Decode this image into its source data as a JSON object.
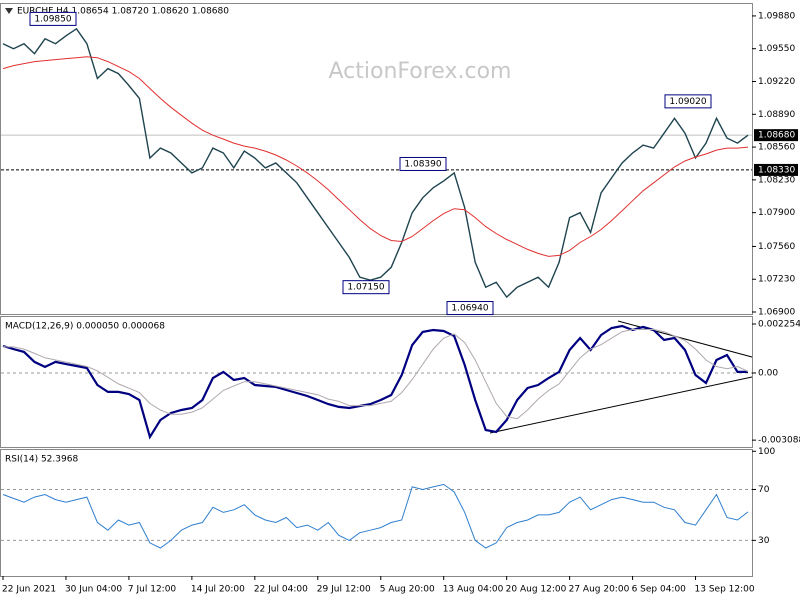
{
  "chart_data": [
    {
      "type": "line",
      "title": "EURCHF,H4  1.08654 1.08720 1.08620 1.08680",
      "watermark": "ActionForex.com",
      "categories": [
        "22 Jun 2021",
        null,
        null,
        null,
        null,
        null,
        "30 Jun 04:00",
        null,
        null,
        null,
        null,
        null,
        "7 Jul 12:00",
        null,
        null,
        null,
        null,
        null,
        "14 Jul 20:00",
        null,
        null,
        null,
        null,
        null,
        "22 Jul 04:00",
        null,
        null,
        null,
        null,
        null,
        "29 Jul 12:00",
        null,
        null,
        null,
        null,
        null,
        "5 Aug 20:00",
        null,
        null,
        null,
        null,
        null,
        "13 Aug 04:00",
        null,
        null,
        null,
        null,
        null,
        "20 Aug 12:00",
        null,
        null,
        null,
        null,
        null,
        "27 Aug 20:00",
        null,
        null,
        null,
        null,
        null,
        "6 Sep 04:00",
        null,
        null,
        null,
        null,
        null,
        "13 Sep 12:00",
        null,
        null,
        null,
        null,
        null
      ],
      "series": [
        {
          "color": "#1f4450",
          "values": [
            1.096,
            1.0955,
            1.096,
            1.095,
            1.0965,
            1.096,
            1.0968,
            1.0975,
            1.096,
            1.0925,
            1.0935,
            1.093,
            1.0918,
            1.0905,
            1.0845,
            1.0855,
            1.085,
            1.084,
            1.083,
            1.0835,
            1.0855,
            1.085,
            1.0835,
            1.0852,
            1.0845,
            1.0835,
            1.084,
            1.083,
            1.082,
            1.0805,
            1.079,
            1.0775,
            1.076,
            1.0745,
            1.0725,
            1.0722,
            1.0725,
            1.0735,
            1.076,
            1.079,
            1.0805,
            1.0815,
            1.0822,
            1.083,
            1.0795,
            1.074,
            1.0715,
            1.072,
            1.0705,
            1.0715,
            1.072,
            1.0725,
            1.0715,
            1.074,
            1.0785,
            1.079,
            1.077,
            1.081,
            1.0825,
            1.084,
            1.085,
            1.0858,
            1.0855,
            1.087,
            1.0885,
            1.087,
            1.0845,
            1.086,
            1.0885,
            1.0865,
            1.086,
            1.0868
          ]
        },
        {
          "color": "#e03030",
          "values": [
            1.0935,
            1.0938,
            1.094,
            1.0942,
            1.0943,
            1.0944,
            1.0945,
            1.0946,
            1.0947,
            1.0946,
            1.0942,
            1.0937,
            1.0932,
            1.0925,
            1.0915,
            1.0905,
            1.0896,
            1.0888,
            1.088,
            1.0873,
            1.0868,
            1.0864,
            1.086,
            1.0857,
            1.0855,
            1.0852,
            1.0848,
            1.0843,
            1.0837,
            1.083,
            1.0822,
            1.0813,
            1.0803,
            1.0793,
            1.0783,
            1.0774,
            1.0767,
            1.0762,
            1.0761,
            1.0766,
            1.0774,
            1.0782,
            1.0789,
            1.0794,
            1.0793,
            1.0785,
            1.0776,
            1.0769,
            1.0763,
            1.0758,
            1.0753,
            1.0749,
            1.0746,
            1.0747,
            1.0752,
            1.076,
            1.0766,
            1.0773,
            1.0782,
            1.0792,
            1.0802,
            1.0812,
            1.082,
            1.0828,
            1.0836,
            1.0842,
            1.0846,
            1.0849,
            1.0853,
            1.0855,
            1.0855,
            1.0856
          ]
        }
      ],
      "ylim": [
        1.0688,
        1.1
      ],
      "yticks": [
        {
          "value": 1.0988,
          "label": "1.09880"
        },
        {
          "value": 1.0955,
          "label": "1.09550"
        },
        {
          "value": 1.0922,
          "label": "1.09220"
        },
        {
          "value": 1.0889,
          "label": "1.08890"
        },
        {
          "value": 1.0856,
          "label": "1.08560"
        },
        {
          "value": 1.0823,
          "label": "1.08230"
        },
        {
          "value": 1.079,
          "label": "1.07900"
        },
        {
          "value": 1.0756,
          "label": "1.07560"
        },
        {
          "value": 1.0723,
          "label": "1.07230"
        },
        {
          "value": 1.069,
          "label": "1.06900"
        }
      ],
      "current_price": {
        "value": 1.0868,
        "label": "1.08680"
      },
      "level": {
        "value": 1.0833,
        "label": "1.08330"
      },
      "annotations": [
        {
          "value": 1.0985,
          "label": "1.09850"
        },
        {
          "value": 1.0839,
          "label": "1.08390"
        },
        {
          "value": 1.0715,
          "label": "1.07150"
        },
        {
          "value": 1.0694,
          "label": "1.06940"
        },
        {
          "value": 1.0902,
          "label": "1.09020"
        }
      ]
    },
    {
      "type": "line",
      "title": "MACD(12,26,9) 0.000050 0.000068",
      "series": [
        {
          "color": "#000080",
          "values": [
            0.00124,
            0.0011,
            0.00097,
            0.00051,
            0.00028,
            0.00051,
            0.00041,
            0.00032,
            0.00023,
            -0.00055,
            -0.00087,
            -0.00087,
            -0.00097,
            -0.00124,
            -0.00294,
            -0.00216,
            -0.00184,
            -0.0017,
            -0.00161,
            -0.00124,
            -0.00023,
            5e-05,
            -0.00032,
            -0.00023,
            -0.00055,
            -0.0006,
            -0.00064,
            -0.00078,
            -0.00092,
            -0.00106,
            -0.00124,
            -0.00143,
            -0.00156,
            -0.00161,
            -0.00152,
            -0.00143,
            -0.00124,
            -0.00101,
            -9e-05,
            0.00129,
            0.00189,
            0.00198,
            0.00193,
            0.0017,
            0.00037,
            -0.00124,
            -0.00262,
            -0.00271,
            -0.00216,
            -0.00124,
            -0.00069,
            -0.00055,
            -0.00023,
            5e-05,
            0.00106,
            0.00161,
            0.00106,
            0.00175,
            0.00207,
            0.00216,
            0.00198,
            0.00212,
            0.00198,
            0.00152,
            0.00161,
            0.00106,
            -9e-05,
            -0.00046,
            0.0006,
            0.00083,
            5e-05,
            5e-05
          ]
        },
        {
          "color": "#b0a8b0",
          "values": [
            0.0012,
            0.0012,
            0.0011,
            0.0009,
            0.0007,
            0.0006,
            0.0005,
            0.0004,
            0.0003,
            0.0001,
            -0.0002,
            -0.0005,
            -0.0007,
            -0.0009,
            -0.0014,
            -0.0017,
            -0.0019,
            -0.0019,
            -0.0018,
            -0.0016,
            -0.0012,
            -0.0008,
            -0.0006,
            -0.0004,
            -0.0004,
            -0.0005,
            -0.0006,
            -0.0007,
            -0.0008,
            -0.0009,
            -0.001,
            -0.0012,
            -0.0013,
            -0.0015,
            -0.0015,
            -0.0015,
            -0.0014,
            -0.0013,
            -0.0009,
            -0.0003,
            0.0004,
            0.0011,
            0.0016,
            0.0018,
            0.0014,
            0.0006,
            -0.0004,
            -0.0014,
            -0.002,
            -0.0021,
            -0.0017,
            -0.0012,
            -0.0008,
            -0.0005,
            0.0001,
            0.0007,
            0.0011,
            0.0013,
            0.0016,
            0.0019,
            0.002,
            0.002,
            0.002,
            0.0019,
            0.0017,
            0.0015,
            0.0011,
            0.0006,
            0.0003,
            0.0002,
            0.0003,
            6.8e-05
          ]
        }
      ],
      "ylim": [
        -0.003404,
        0.002576
      ],
      "yticks": [
        0.002254,
        {
          "value": 0,
          "label": "0.00"
        },
        -0.003088
      ],
      "hlines": [
        0
      ]
    },
    {
      "type": "line",
      "title": "RSI(14) 52.3968",
      "series": [
        {
          "color": "#2f7fd0",
          "values": [
            66,
            63,
            60,
            64,
            66,
            62,
            60,
            62,
            64,
            44,
            38,
            46,
            42,
            44,
            28,
            24,
            30,
            38,
            42,
            44,
            56,
            52,
            54,
            58,
            50,
            46,
            44,
            48,
            40,
            42,
            38,
            44,
            34,
            30,
            36,
            38,
            40,
            44,
            46,
            72,
            70,
            72,
            74,
            68,
            52,
            30,
            24,
            28,
            40,
            44,
            46,
            50,
            50,
            52,
            60,
            64,
            54,
            58,
            62,
            64,
            62,
            60,
            60,
            56,
            54,
            44,
            42,
            54,
            66,
            48,
            46,
            52.4
          ]
        }
      ],
      "ylim": [
        2,
        101
      ],
      "yticks": [
        100,
        70,
        30
      ],
      "hlines": [
        70,
        30
      ]
    }
  ]
}
